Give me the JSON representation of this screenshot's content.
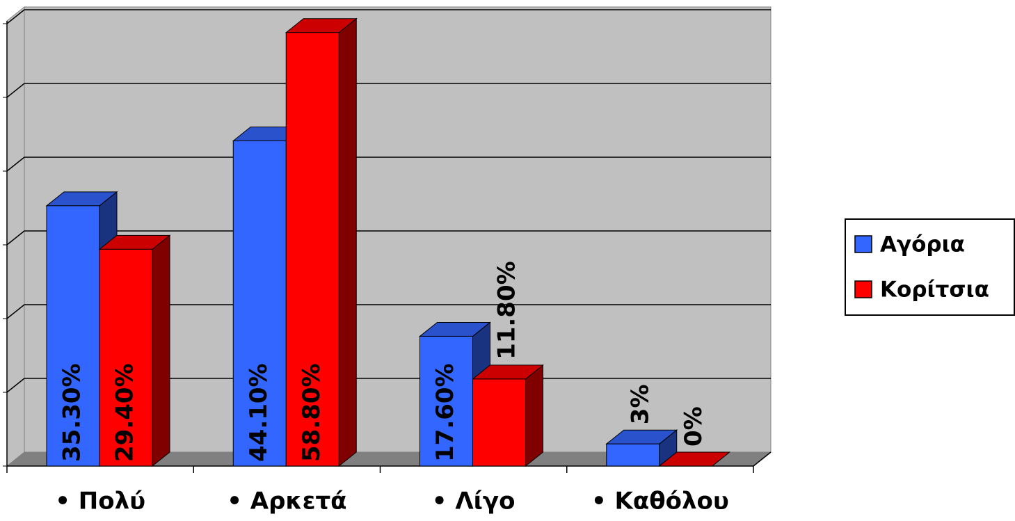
{
  "chart_data": {
    "type": "bar3d",
    "categories": [
      "• Πολύ",
      "• Αρκετά",
      "• Λίγο",
      "• Καθόλου"
    ],
    "series": [
      {
        "name": "Αγόρια",
        "color": "#3366ff",
        "values": [
          35.3,
          44.1,
          17.6,
          3
        ],
        "value_labels": [
          "35.30%",
          "44.10%",
          "17.60%",
          "3%"
        ]
      },
      {
        "name": "Κορίτσια",
        "color": "#ff0000",
        "values": [
          29.4,
          58.8,
          11.8,
          0
        ],
        "value_labels": [
          "29.40%",
          "58.80%",
          "11.80%",
          "0%"
        ]
      }
    ],
    "ylim": [
      0,
      60
    ],
    "yticks": [
      0,
      10,
      20,
      30,
      40,
      50,
      60
    ],
    "grid": true,
    "legend": "right"
  }
}
